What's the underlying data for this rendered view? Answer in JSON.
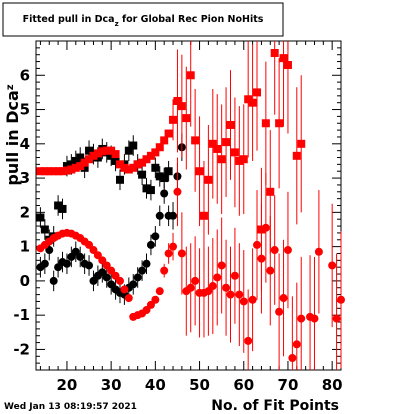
{
  "timestamp": "Wed Jan 13 08:19:57 2021",
  "chart_data": {
    "type": "scatter",
    "title": "Fitted pull in Dca",
    "title_sub": "z",
    "title_rest": " for Global Rec Pion NoHits",
    "ylabel_main": "pull in Dca",
    "ylabel_sub": "z",
    "xlabel": "No. of Fit Points",
    "xlim": [
      13,
      82
    ],
    "ylim": [
      -2.6,
      7.0
    ],
    "x_ticks": [
      20,
      30,
      40,
      50,
      60,
      70,
      80
    ],
    "y_ticks": [
      -2,
      -1,
      0,
      1,
      2,
      3,
      4,
      5,
      6
    ],
    "grid": false,
    "colors": {
      "black_series": "#000000",
      "red_series": "#ff0000"
    },
    "series": [
      {
        "marker": "square",
        "color": "#000000",
        "points": [
          {
            "x": 14,
            "y": 1.85,
            "e": 0.3
          },
          {
            "x": 15,
            "y": 1.5,
            "e": 0.3
          },
          {
            "x": 16,
            "y": 1.2,
            "e": 0.3
          },
          {
            "x": 17,
            "y": 1.3,
            "e": 0.3
          },
          {
            "x": 18,
            "y": 2.2,
            "e": 0.3
          },
          {
            "x": 19,
            "y": 2.1,
            "e": 0.3
          },
          {
            "x": 20,
            "y": 3.35,
            "e": 0.3
          },
          {
            "x": 21,
            "y": 3.4,
            "e": 0.3
          },
          {
            "x": 22,
            "y": 3.5,
            "e": 0.3
          },
          {
            "x": 23,
            "y": 3.6,
            "e": 0.3
          },
          {
            "x": 24,
            "y": 3.3,
            "e": 0.3
          },
          {
            "x": 25,
            "y": 3.8,
            "e": 0.3
          },
          {
            "x": 26,
            "y": 3.7,
            "e": 0.3
          },
          {
            "x": 27,
            "y": 3.6,
            "e": 0.3
          },
          {
            "x": 28,
            "y": 3.85,
            "e": 0.3
          },
          {
            "x": 29,
            "y": 3.75,
            "e": 0.3
          },
          {
            "x": 30,
            "y": 3.65,
            "e": 0.3
          },
          {
            "x": 31,
            "y": 3.5,
            "e": 0.3
          },
          {
            "x": 32,
            "y": 2.95,
            "e": 0.3
          },
          {
            "x": 33,
            "y": 3.4,
            "e": 0.3
          },
          {
            "x": 34,
            "y": 3.8,
            "e": 0.3
          },
          {
            "x": 35,
            "y": 3.95,
            "e": 0.3
          },
          {
            "x": 36,
            "y": 3.4,
            "e": 0.3
          },
          {
            "x": 37,
            "y": 3.1,
            "e": 0.3
          },
          {
            "x": 38,
            "y": 2.7,
            "e": 0.3
          },
          {
            "x": 39,
            "y": 2.65,
            "e": 0.3
          },
          {
            "x": 40,
            "y": 3.3,
            "e": 0.3
          },
          {
            "x": 41,
            "y": 3.05,
            "e": 0.3
          },
          {
            "x": 42,
            "y": 3.0,
            "e": 0.3
          },
          {
            "x": 43,
            "y": 3.2,
            "e": 0.3
          }
        ]
      },
      {
        "marker": "circle",
        "color": "#000000",
        "points": [
          {
            "x": 14,
            "y": 0.4,
            "e": 0.3
          },
          {
            "x": 15,
            "y": 0.5,
            "e": 0.3
          },
          {
            "x": 16,
            "y": 0.9,
            "e": 0.3
          },
          {
            "x": 17,
            "y": 0.0,
            "e": 0.3
          },
          {
            "x": 18,
            "y": 0.4,
            "e": 0.3
          },
          {
            "x": 19,
            "y": 0.55,
            "e": 0.3
          },
          {
            "x": 20,
            "y": 0.5,
            "e": 0.3
          },
          {
            "x": 21,
            "y": 0.7,
            "e": 0.3
          },
          {
            "x": 22,
            "y": 0.85,
            "e": 0.3
          },
          {
            "x": 23,
            "y": 0.7,
            "e": 0.3
          },
          {
            "x": 24,
            "y": 0.5,
            "e": 0.3
          },
          {
            "x": 25,
            "y": 0.45,
            "e": 0.3
          },
          {
            "x": 26,
            "y": 0.0,
            "e": 0.3
          },
          {
            "x": 27,
            "y": 0.15,
            "e": 0.3
          },
          {
            "x": 28,
            "y": 0.25,
            "e": 0.3
          },
          {
            "x": 29,
            "y": 0.1,
            "e": 0.3
          },
          {
            "x": 30,
            "y": -0.1,
            "e": 0.3
          },
          {
            "x": 31,
            "y": -0.25,
            "e": 0.3
          },
          {
            "x": 32,
            "y": -0.35,
            "e": 0.3
          },
          {
            "x": 33,
            "y": -0.4,
            "e": 0.3
          },
          {
            "x": 34,
            "y": -0.2,
            "e": 0.3
          },
          {
            "x": 35,
            "y": -0.1,
            "e": 0.3
          },
          {
            "x": 36,
            "y": 0.1,
            "e": 0.3
          },
          {
            "x": 37,
            "y": 0.3,
            "e": 0.3
          },
          {
            "x": 38,
            "y": 0.5,
            "e": 0.3
          },
          {
            "x": 39,
            "y": 1.05,
            "e": 0.3
          },
          {
            "x": 40,
            "y": 1.3,
            "e": 0.3
          },
          {
            "x": 41,
            "y": 1.9,
            "e": 0.3
          },
          {
            "x": 42,
            "y": 2.55,
            "e": 0.3
          },
          {
            "x": 43,
            "y": 1.9,
            "e": 0.3
          },
          {
            "x": 44,
            "y": 1.9,
            "e": 0.4
          },
          {
            "x": 45,
            "y": 3.05,
            "e": 0.4
          },
          {
            "x": 46,
            "y": 3.9,
            "e": 0.4
          }
        ]
      },
      {
        "marker": "square",
        "color": "#ff0000",
        "points": [
          {
            "x": 14,
            "y": 3.2,
            "e": 0.1
          },
          {
            "x": 15,
            "y": 3.2,
            "e": 0.1
          },
          {
            "x": 16,
            "y": 3.2,
            "e": 0.1
          },
          {
            "x": 17,
            "y": 3.2,
            "e": 0.1
          },
          {
            "x": 18,
            "y": 3.2,
            "e": 0.1
          },
          {
            "x": 19,
            "y": 3.2,
            "e": 0.1
          },
          {
            "x": 20,
            "y": 3.22,
            "e": 0.1
          },
          {
            "x": 21,
            "y": 3.25,
            "e": 0.1
          },
          {
            "x": 22,
            "y": 3.3,
            "e": 0.1
          },
          {
            "x": 23,
            "y": 3.35,
            "e": 0.1
          },
          {
            "x": 24,
            "y": 3.45,
            "e": 0.1
          },
          {
            "x": 25,
            "y": 3.55,
            "e": 0.1
          },
          {
            "x": 26,
            "y": 3.65,
            "e": 0.1
          },
          {
            "x": 27,
            "y": 3.72,
            "e": 0.1
          },
          {
            "x": 28,
            "y": 3.78,
            "e": 0.1
          },
          {
            "x": 29,
            "y": 3.8,
            "e": 0.1
          },
          {
            "x": 30,
            "y": 3.8,
            "e": 0.1
          },
          {
            "x": 31,
            "y": 3.7,
            "e": 0.1
          },
          {
            "x": 32,
            "y": 3.4,
            "e": 0.1
          },
          {
            "x": 33,
            "y": 3.3,
            "e": 0.1
          },
          {
            "x": 34,
            "y": 3.25,
            "e": 0.1
          },
          {
            "x": 35,
            "y": 3.3,
            "e": 0.1
          },
          {
            "x": 36,
            "y": 3.4,
            "e": 0.1
          },
          {
            "x": 37,
            "y": 3.45,
            "e": 0.1
          },
          {
            "x": 38,
            "y": 3.55,
            "e": 0.1
          },
          {
            "x": 39,
            "y": 3.65,
            "e": 0.1
          },
          {
            "x": 40,
            "y": 3.75,
            "e": 0.1
          },
          {
            "x": 41,
            "y": 3.9,
            "e": 0.1
          },
          {
            "x": 42,
            "y": 4.1,
            "e": 0.1
          },
          {
            "x": 43,
            "y": 4.3,
            "e": 0.1
          },
          {
            "x": 44,
            "y": 4.7,
            "e": 0.6
          },
          {
            "x": 45,
            "y": 5.25,
            "e": 1.5
          },
          {
            "x": 46,
            "y": 5.1,
            "e": 1.5
          },
          {
            "x": 47,
            "y": 4.75,
            "e": 1.5
          },
          {
            "x": 48,
            "y": 6.0,
            "e": 1.5
          },
          {
            "x": 49,
            "y": 4.1,
            "e": 1.5
          },
          {
            "x": 50,
            "y": 3.2,
            "e": 1.6
          },
          {
            "x": 51,
            "y": 1.9,
            "e": 1.6
          },
          {
            "x": 52,
            "y": 2.95,
            "e": 1.6
          },
          {
            "x": 53,
            "y": 4.0,
            "e": 1.6
          },
          {
            "x": 54,
            "y": 3.85,
            "e": 1.6
          },
          {
            "x": 55,
            "y": 3.55,
            "e": 1.6
          },
          {
            "x": 56,
            "y": 4.05,
            "e": 1.6
          },
          {
            "x": 57,
            "y": 4.55,
            "e": 1.6
          },
          {
            "x": 58,
            "y": 3.75,
            "e": 1.6
          },
          {
            "x": 59,
            "y": 3.5,
            "e": 1.6
          },
          {
            "x": 60,
            "y": 3.55,
            "e": 1.6
          },
          {
            "x": 61,
            "y": 5.3,
            "e": 1.7
          },
          {
            "x": 62,
            "y": 5.2,
            "e": 1.7
          },
          {
            "x": 63,
            "y": 5.5,
            "e": 1.7
          },
          {
            "x": 64,
            "y": 1.5,
            "e": 1.8
          },
          {
            "x": 65,
            "y": 4.6,
            "e": 1.8
          },
          {
            "x": 66,
            "y": 2.6,
            "e": 1.8
          },
          {
            "x": 67,
            "y": 6.65,
            "e": 1.8
          },
          {
            "x": 68,
            "y": 4.6,
            "e": 1.9
          },
          {
            "x": 69,
            "y": 6.5,
            "e": 2.0
          },
          {
            "x": 70,
            "y": 6.3,
            "e": 2.0
          },
          {
            "x": 72,
            "y": 3.65,
            "e": 2.0
          },
          {
            "x": 73,
            "y": 4.0,
            "e": 2.0
          }
        ]
      },
      {
        "marker": "circle",
        "color": "#ff0000",
        "points": [
          {
            "x": 14,
            "y": 0.95,
            "e": 0.1
          },
          {
            "x": 15,
            "y": 1.05,
            "e": 0.1
          },
          {
            "x": 16,
            "y": 1.15,
            "e": 0.1
          },
          {
            "x": 17,
            "y": 1.25,
            "e": 0.1
          },
          {
            "x": 18,
            "y": 1.32,
            "e": 0.1
          },
          {
            "x": 19,
            "y": 1.38,
            "e": 0.1
          },
          {
            "x": 20,
            "y": 1.4,
            "e": 0.1
          },
          {
            "x": 21,
            "y": 1.38,
            "e": 0.1
          },
          {
            "x": 22,
            "y": 1.32,
            "e": 0.1
          },
          {
            "x": 23,
            "y": 1.25,
            "e": 0.1
          },
          {
            "x": 24,
            "y": 1.15,
            "e": 0.1
          },
          {
            "x": 25,
            "y": 1.05,
            "e": 0.1
          },
          {
            "x": 26,
            "y": 0.9,
            "e": 0.1
          },
          {
            "x": 27,
            "y": 0.75,
            "e": 0.1
          },
          {
            "x": 28,
            "y": 0.6,
            "e": 0.1
          },
          {
            "x": 29,
            "y": 0.45,
            "e": 0.1
          },
          {
            "x": 30,
            "y": 0.3,
            "e": 0.1
          },
          {
            "x": 31,
            "y": 0.15,
            "e": 0.1
          },
          {
            "x": 32,
            "y": 0.0,
            "e": 0.1
          },
          {
            "x": 33,
            "y": -0.25,
            "e": 0.1
          },
          {
            "x": 34,
            "y": -0.5,
            "e": 0.1
          },
          {
            "x": 35,
            "y": -1.05,
            "e": 0.1
          },
          {
            "x": 36,
            "y": -1.0,
            "e": 0.1
          },
          {
            "x": 37,
            "y": -0.95,
            "e": 0.1
          },
          {
            "x": 38,
            "y": -0.85,
            "e": 0.1
          },
          {
            "x": 39,
            "y": -0.7,
            "e": 0.1
          },
          {
            "x": 40,
            "y": -0.55,
            "e": 0.1
          },
          {
            "x": 41,
            "y": -0.3,
            "e": 0.1
          },
          {
            "x": 42,
            "y": 0.3,
            "e": 0.2
          },
          {
            "x": 43,
            "y": 0.8,
            "e": 0.3
          },
          {
            "x": 44,
            "y": 1.0,
            "e": 0.4
          },
          {
            "x": 45,
            "y": 2.6,
            "e": 1.0
          },
          {
            "x": 46,
            "y": 0.8,
            "e": 1.2
          },
          {
            "x": 47,
            "y": -0.3,
            "e": 1.3
          },
          {
            "x": 48,
            "y": -0.2,
            "e": 1.3
          },
          {
            "x": 49,
            "y": 0.0,
            "e": 1.3
          },
          {
            "x": 50,
            "y": -0.35,
            "e": 1.3
          },
          {
            "x": 51,
            "y": -0.35,
            "e": 1.3
          },
          {
            "x": 52,
            "y": -0.3,
            "e": 1.3
          },
          {
            "x": 53,
            "y": -0.15,
            "e": 1.4
          },
          {
            "x": 54,
            "y": 0.1,
            "e": 1.4
          },
          {
            "x": 55,
            "y": 0.45,
            "e": 1.4
          },
          {
            "x": 56,
            "y": -0.2,
            "e": 1.4
          },
          {
            "x": 57,
            "y": -0.4,
            "e": 1.4
          },
          {
            "x": 58,
            "y": 0.15,
            "e": 1.4
          },
          {
            "x": 59,
            "y": -0.4,
            "e": 1.5
          },
          {
            "x": 60,
            "y": -0.6,
            "e": 1.5
          },
          {
            "x": 61,
            "y": -1.75,
            "e": 1.5
          },
          {
            "x": 62,
            "y": -0.55,
            "e": 1.5
          },
          {
            "x": 63,
            "y": 1.05,
            "e": 1.6
          },
          {
            "x": 64,
            "y": 0.65,
            "e": 1.6
          },
          {
            "x": 65,
            "y": 1.55,
            "e": 1.6
          },
          {
            "x": 66,
            "y": 0.3,
            "e": 1.6
          },
          {
            "x": 67,
            "y": 0.9,
            "e": 1.6
          },
          {
            "x": 68,
            "y": -0.9,
            "e": 1.7
          },
          {
            "x": 69,
            "y": -0.5,
            "e": 1.7
          },
          {
            "x": 70,
            "y": 0.9,
            "e": 1.7
          },
          {
            "x": 71,
            "y": -2.25,
            "e": 1.8
          },
          {
            "x": 72,
            "y": -1.85,
            "e": 1.8
          },
          {
            "x": 73,
            "y": -1.1,
            "e": 1.8
          },
          {
            "x": 75,
            "y": -1.05,
            "e": 1.8
          },
          {
            "x": 76,
            "y": -1.1,
            "e": 1.8
          },
          {
            "x": 77,
            "y": 0.85,
            "e": 1.8
          },
          {
            "x": 80,
            "y": 0.45,
            "e": 1.8
          },
          {
            "x": 81,
            "y": -1.1,
            "e": 1.9
          },
          {
            "x": 82,
            "y": -0.55,
            "e": 2.0
          }
        ]
      }
    ]
  }
}
